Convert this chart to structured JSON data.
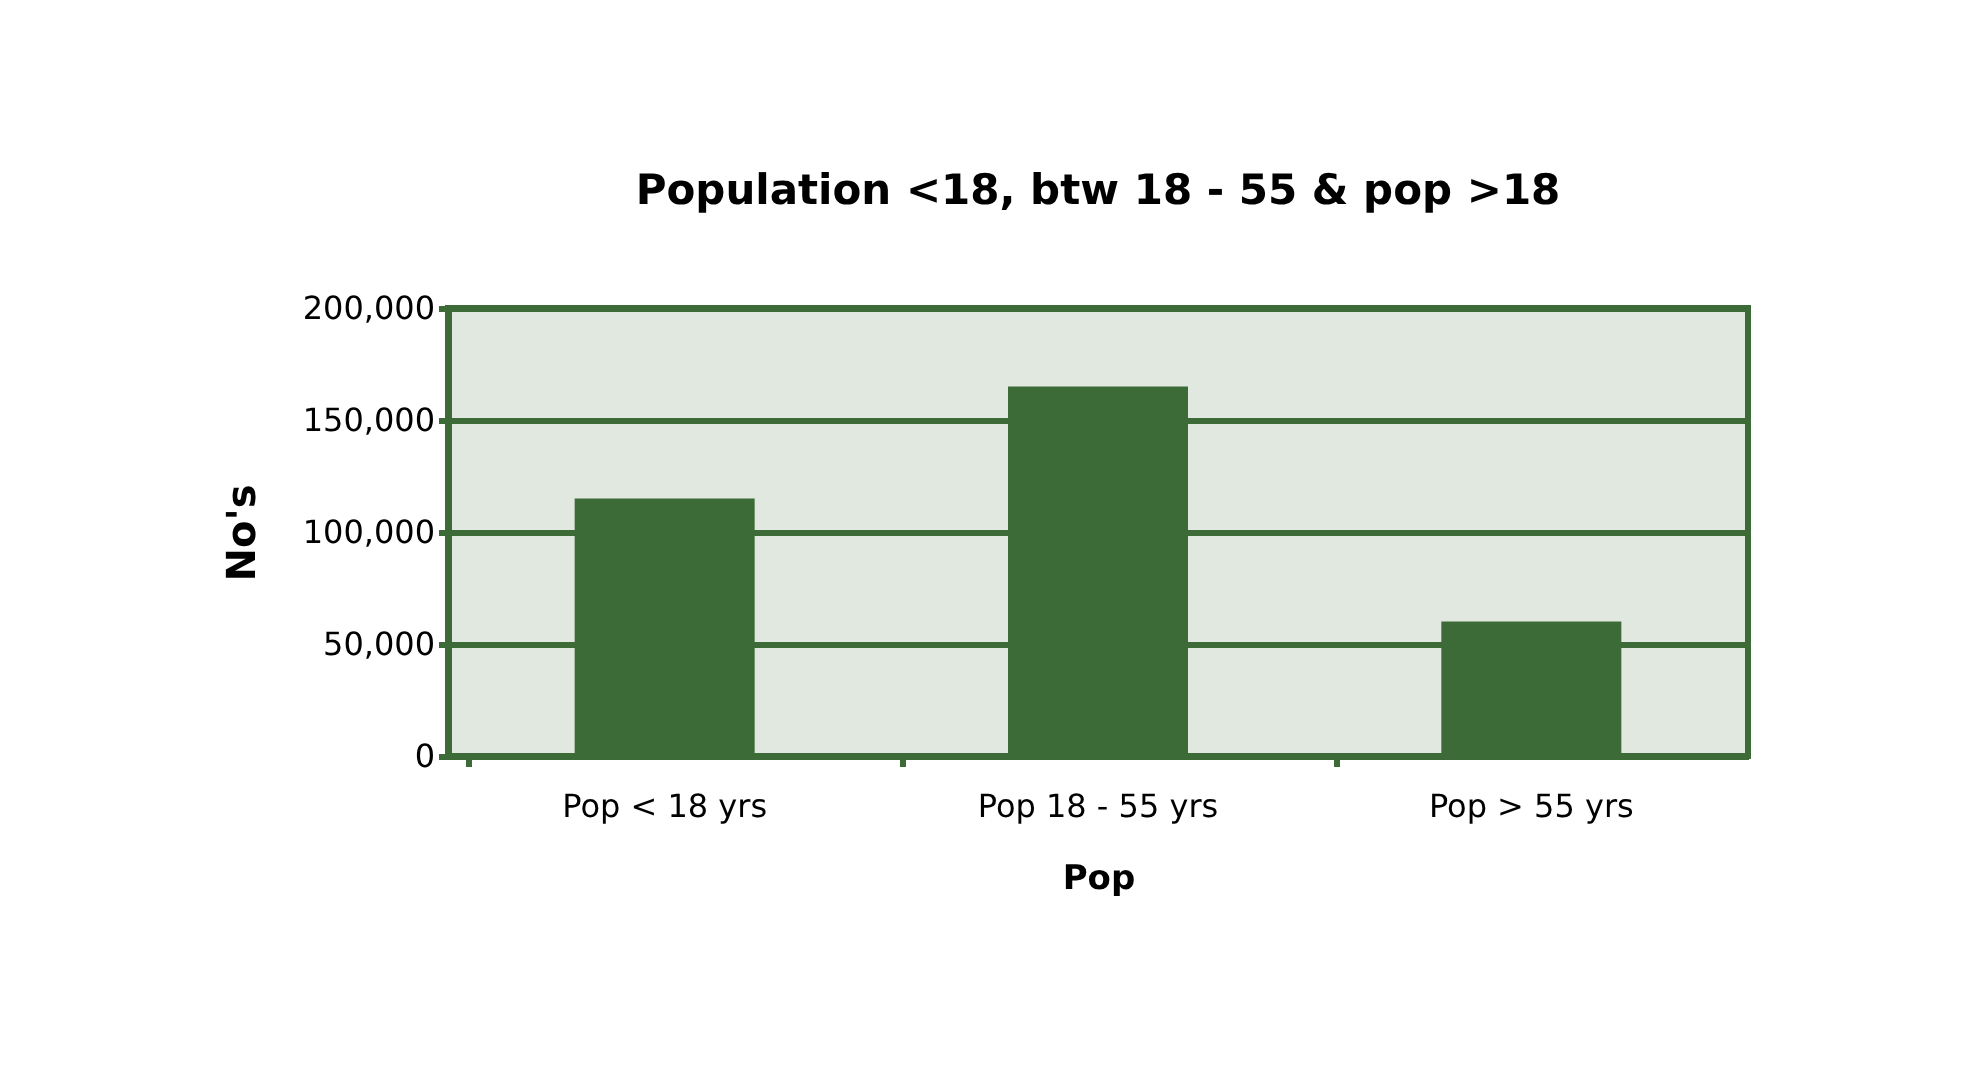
{
  "chart_data": {
    "type": "bar",
    "title": "Population <18, btw 18 - 55 & pop >18",
    "xlabel": "Pop",
    "ylabel": "No's",
    "categories": [
      "Pop < 18 yrs",
      "Pop 18 - 55 yrs",
      "Pop > 55 yrs"
    ],
    "values": [
      115000,
      165000,
      60000
    ],
    "color": "#3d6b37",
    "ylim": [
      0,
      200000
    ],
    "yticks": [
      0,
      {
        "value": 50000,
        "label": "50,000"
      },
      {
        "value": 100000,
        "label": "100,000"
      },
      {
        "value": 150000,
        "label": "150,000"
      },
      {
        "value": 200000,
        "label": "200,000"
      }
    ],
    "grid": "y"
  }
}
